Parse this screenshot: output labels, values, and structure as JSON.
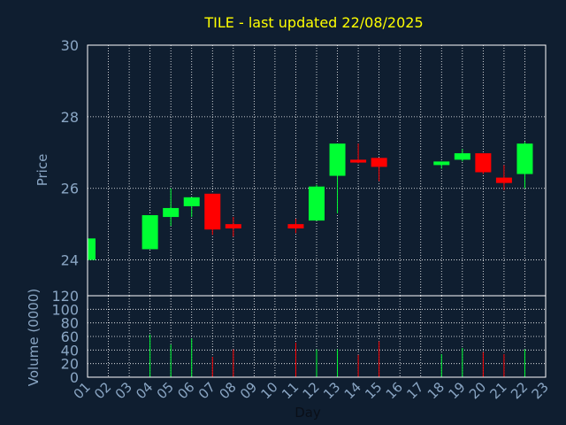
{
  "title": "TILE - last updated 22/08/2025",
  "colors": {
    "background": "#0f1e30",
    "title": "#ffff00",
    "axis_text": "#8aa6c4",
    "frame": "#ffffff",
    "grid": "#ffffff",
    "up": "#00ff33",
    "down": "#ff0000"
  },
  "chart_data": {
    "type": "candlestick",
    "title": "TILE - last updated 22/08/2025",
    "xlabel": "Day",
    "x_ticks": [
      "01",
      "02",
      "03",
      "04",
      "05",
      "06",
      "07",
      "08",
      "09",
      "10",
      "11",
      "12",
      "13",
      "14",
      "15",
      "16",
      "17",
      "18",
      "19",
      "20",
      "21",
      "22",
      "23"
    ],
    "price_panel": {
      "ylabel": "Price",
      "ylim": [
        23,
        30
      ],
      "yticks": [
        "24",
        "26",
        "28",
        "30"
      ],
      "grid": true,
      "candles": [
        {
          "day": "01",
          "open": 24.0,
          "high": 24.6,
          "low": 24.0,
          "close": 24.6
        },
        {
          "day": "04",
          "open": 24.3,
          "high": 25.25,
          "low": 24.3,
          "close": 25.25
        },
        {
          "day": "05",
          "open": 25.2,
          "high": 26.0,
          "low": 24.95,
          "close": 25.45
        },
        {
          "day": "06",
          "open": 25.5,
          "high": 25.75,
          "low": 25.2,
          "close": 25.75
        },
        {
          "day": "07",
          "open": 25.85,
          "high": 25.85,
          "low": 24.7,
          "close": 24.85
        },
        {
          "day": "08",
          "open": 25.0,
          "high": 25.2,
          "low": 24.65,
          "close": 24.88
        },
        {
          "day": "11",
          "open": 25.0,
          "high": 25.15,
          "low": 24.75,
          "close": 24.88
        },
        {
          "day": "12",
          "open": 25.1,
          "high": 26.1,
          "low": 25.1,
          "close": 26.05
        },
        {
          "day": "13",
          "open": 26.35,
          "high": 27.25,
          "low": 25.3,
          "close": 27.25
        },
        {
          "day": "14",
          "open": 26.8,
          "high": 27.25,
          "low": 26.7,
          "close": 26.72
        },
        {
          "day": "15",
          "open": 26.85,
          "high": 26.85,
          "low": 26.2,
          "close": 26.6
        },
        {
          "day": "18",
          "open": 26.65,
          "high": 26.75,
          "low": 26.55,
          "close": 26.75
        },
        {
          "day": "19",
          "open": 26.8,
          "high": 27.1,
          "low": 26.75,
          "close": 26.98
        },
        {
          "day": "20",
          "open": 26.98,
          "high": 26.98,
          "low": 26.4,
          "close": 26.45
        },
        {
          "day": "21",
          "open": 26.3,
          "high": 26.65,
          "low": 25.95,
          "close": 26.15
        },
        {
          "day": "22",
          "open": 26.4,
          "high": 27.3,
          "low": 26.0,
          "close": 27.25
        }
      ]
    },
    "volume_panel": {
      "ylabel": "Volume (0000)",
      "ylim": [
        0,
        120
      ],
      "yticks": [
        "0",
        "20",
        "40",
        "60",
        "80",
        "100",
        "120"
      ],
      "grid": true,
      "bars": [
        {
          "day": "01",
          "value": 27,
          "direction": "up"
        },
        {
          "day": "04",
          "value": 63,
          "direction": "up"
        },
        {
          "day": "05",
          "value": 48,
          "direction": "up"
        },
        {
          "day": "06",
          "value": 57,
          "direction": "up"
        },
        {
          "day": "07",
          "value": 30,
          "direction": "down"
        },
        {
          "day": "08",
          "value": 41,
          "direction": "down"
        },
        {
          "day": "11",
          "value": 51,
          "direction": "down"
        },
        {
          "day": "12",
          "value": 41,
          "direction": "up"
        },
        {
          "day": "13",
          "value": 41,
          "direction": "up"
        },
        {
          "day": "14",
          "value": 33,
          "direction": "down"
        },
        {
          "day": "15",
          "value": 53,
          "direction": "down"
        },
        {
          "day": "18",
          "value": 34,
          "direction": "up"
        },
        {
          "day": "19",
          "value": 43,
          "direction": "up"
        },
        {
          "day": "20",
          "value": 37,
          "direction": "down"
        },
        {
          "day": "21",
          "value": 34,
          "direction": "down"
        },
        {
          "day": "22",
          "value": 41,
          "direction": "up"
        }
      ]
    }
  }
}
